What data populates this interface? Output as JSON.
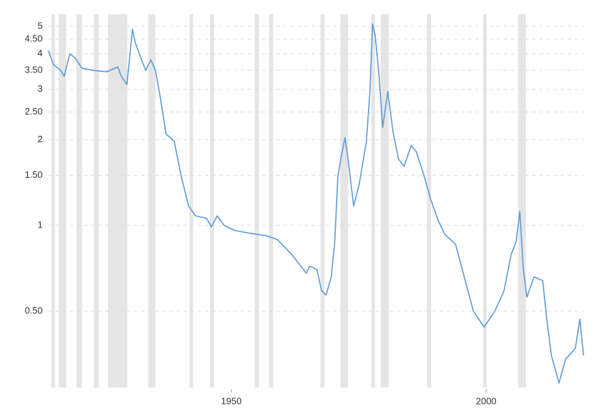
{
  "chart_data": {
    "type": "line",
    "log_scale": true,
    "grid": true,
    "x": [
      1914.1,
      1915.1,
      1916.5,
      1917.2,
      1918.3,
      1919.3,
      1920.7,
      1922.8,
      1925.6,
      1927.7,
      1928.4,
      1929.5,
      1930.0,
      1930.6,
      1931.1,
      1932.1,
      1933.2,
      1934.2,
      1935.1,
      1936.0,
      1937.2,
      1938.1,
      1938.8,
      1940.2,
      1941.6,
      1943.0,
      1945.1,
      1946.1,
      1947.2,
      1948.6,
      1950.7,
      1953.5,
      1957.0,
      1959.1,
      1961.9,
      1964.7,
      1965.4,
      1966.8,
      1967.7,
      1968.6,
      1969.6,
      1970.3,
      1970.9,
      1971.6,
      1972.3,
      1973.0,
      1974.0,
      1975.1,
      1976.5,
      1977.2,
      1977.7,
      1978.2,
      1978.9,
      1979.7,
      1980.7,
      1981.7,
      1982.8,
      1983.9,
      1985.3,
      1986.3,
      1987.7,
      1989.1,
      1990.5,
      1991.9,
      1994.0,
      1996.1,
      1997.5,
      1999.6,
      2001.7,
      2003.5,
      2004.9,
      2005.9,
      2006.6,
      2007.3,
      2008.0,
      2009.4,
      2011.1,
      2011.9,
      2012.8,
      2014.3,
      2015.6,
      2017.5,
      2018.4,
      2019.1
    ],
    "series": [
      {
        "color": "#5b9bd9",
        "values": [
          4.11,
          3.66,
          3.5,
          3.34,
          4.0,
          3.88,
          3.56,
          3.5,
          3.46,
          3.6,
          3.34,
          3.12,
          3.81,
          4.88,
          4.4,
          3.93,
          3.5,
          3.81,
          3.5,
          2.86,
          2.09,
          2.03,
          1.97,
          1.48,
          1.17,
          1.08,
          1.06,
          0.99,
          1.08,
          1.0,
          0.96,
          0.94,
          0.92,
          0.89,
          0.79,
          0.68,
          0.72,
          0.7,
          0.59,
          0.57,
          0.66,
          0.88,
          1.48,
          1.76,
          2.03,
          1.66,
          1.17,
          1.4,
          1.97,
          2.95,
          5.09,
          4.66,
          3.5,
          2.21,
          2.95,
          2.15,
          1.71,
          1.61,
          1.91,
          1.81,
          1.52,
          1.24,
          1.05,
          0.93,
          0.86,
          0.62,
          0.5,
          0.44,
          0.5,
          0.59,
          0.79,
          0.88,
          1.12,
          0.7,
          0.56,
          0.66,
          0.64,
          0.47,
          0.35,
          0.28,
          0.34,
          0.37,
          0.47,
          0.35
        ]
      }
    ],
    "recessions": [
      [
        1914.7,
        1915.4
      ],
      [
        1916.1,
        1917.6
      ],
      [
        1919.6,
        1920.7
      ],
      [
        1923.0,
        1924.0
      ],
      [
        1925.8,
        1929.6
      ],
      [
        1933.7,
        1935.1
      ],
      [
        1941.8,
        1942.5
      ],
      [
        1945.8,
        1946.6
      ],
      [
        1954.6,
        1955.4
      ],
      [
        1957.4,
        1958.2
      ],
      [
        1967.5,
        1968.3
      ],
      [
        1971.4,
        1972.9
      ],
      [
        1977.5,
        1978.2
      ],
      [
        1979.3,
        1980.9
      ],
      [
        1988.4,
        1989.2
      ],
      [
        1999.4,
        2000.1
      ],
      [
        2006.3,
        2007.8
      ]
    ],
    "recession_color": "#e5e5e5",
    "xlim": [
      1914.1,
      2019.1
    ],
    "xticks": [
      1950,
      2000
    ],
    "ylim": [
      0.27,
      5.2
    ],
    "yticks": [
      {
        "value": 0.5,
        "label": "0.50"
      },
      1,
      {
        "value": 1.5,
        "label": "1.50"
      },
      2,
      {
        "value": 2.5,
        "label": "2.50"
      },
      3,
      {
        "value": 3.5,
        "label": "3.50"
      },
      4,
      {
        "value": 4.5,
        "label": "4.50"
      },
      5
    ]
  }
}
